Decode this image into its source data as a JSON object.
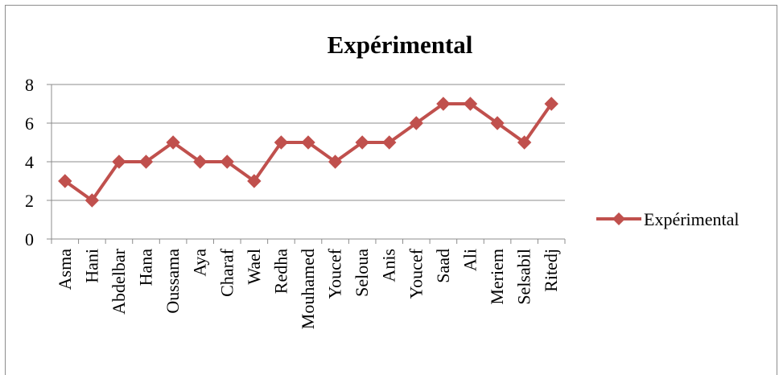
{
  "chart_data": {
    "type": "line",
    "title": "Expérimental",
    "xlabel": "",
    "ylabel": "",
    "categories": [
      "Asma",
      "Hani",
      "Abdelbar",
      "Hana",
      "Oussama",
      "Aya",
      "Charaf",
      "Wael",
      "Redha",
      "Mouhamed",
      "Youcef",
      "Seloua",
      "Anis",
      "Youcef",
      "Saad",
      "Ali",
      "Meriem",
      "Selsabil",
      "Ritedj"
    ],
    "series": [
      {
        "name": "Expérimental",
        "values": [
          3,
          2,
          4,
          4,
          5,
          4,
          4,
          3,
          5,
          5,
          4,
          5,
          5,
          6,
          7,
          7,
          6,
          5,
          7
        ],
        "color": "#c0504d",
        "marker": "diamond"
      }
    ],
    "ylim": [
      0,
      8
    ],
    "yticks": [
      "0",
      "2",
      "4",
      "6",
      "8"
    ],
    "grid": "horizontal",
    "legend_position": "right"
  }
}
